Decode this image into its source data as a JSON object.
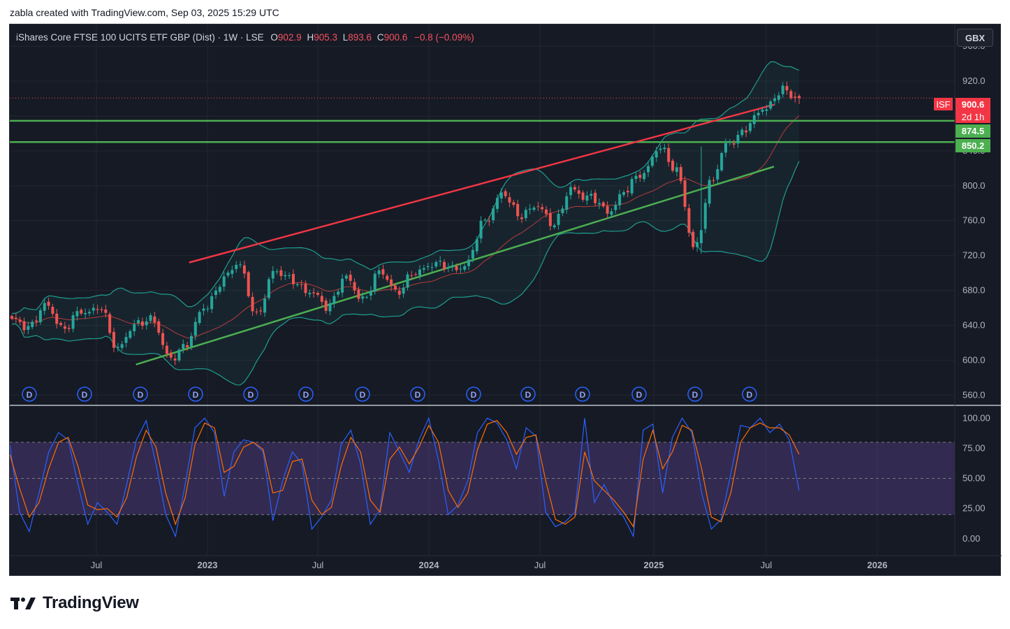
{
  "header": {
    "text": "zabla created with TradingView.com, Sep 03, 2025 15:29 UTC"
  },
  "legend": {
    "instrument": "iShares Core FTSE 100 UCITS ETF GBP (Dist) · 1W · LSE",
    "o_label": "O",
    "o_value": "902.9",
    "h_label": "H",
    "h_value": "905.3",
    "l_label": "L",
    "l_value": "893.6",
    "c_label": "C",
    "c_value": "900.6",
    "change": "−0.8 (−0.09%)"
  },
  "currency": "GBX",
  "price_tags": {
    "symbol": "ISF",
    "last_price": "900.6",
    "countdown": "2d 1h",
    "level_1": "874.5",
    "level_2": "850.2"
  },
  "colors": {
    "background": "#161a25",
    "up": "#26a69a",
    "down": "#ef5350",
    "red_line": "#f23645",
    "green_line": "#4caf50",
    "bb_band": "#1e9e8e",
    "bb_basis": "#b83a3a",
    "stoch_k": "#2962ff",
    "stoch_d": "#ff6d00",
    "stoch_band": "#7e57c2",
    "dividend": "#2962ff"
  },
  "brand": {
    "name": "TradingView",
    "icon": "tradingview-logo-icon"
  },
  "chart_data": [
    {
      "type": "candlestick",
      "title": "iShares Core FTSE 100 UCITS ETF GBP (Dist) · 1W · LSE",
      "timeframe": "1W",
      "y_axis_ticks": [
        "960.0",
        "920.0",
        "880.0",
        "840.0",
        "800.0",
        "760.0",
        "720.0",
        "680.0",
        "640.0",
        "600.0",
        "560.0"
      ],
      "x_axis_ticks": [
        "Jul",
        "2023",
        "Jul",
        "2024",
        "Jul",
        "2025",
        "Jul",
        "2026"
      ],
      "ylim": [
        549,
        985
      ],
      "last_price": 900.6,
      "weekly_close_anchors": [
        {
          "t": "2022-04",
          "close": 645
        },
        {
          "t": "2022-05",
          "close": 640
        },
        {
          "t": "2022-05b",
          "close": 662
        },
        {
          "t": "2022-06",
          "close": 636
        },
        {
          "t": "2022-07",
          "close": 656
        },
        {
          "t": "2022-08",
          "close": 660
        },
        {
          "t": "2022-09",
          "close": 615
        },
        {
          "t": "2022-10",
          "close": 638
        },
        {
          "t": "2022-10b",
          "close": 650
        },
        {
          "t": "2022-11",
          "close": 600
        },
        {
          "t": "2022-11b",
          "close": 620
        },
        {
          "t": "2022-12",
          "close": 660
        },
        {
          "t": "2023-01",
          "close": 690
        },
        {
          "t": "2023-02",
          "close": 712
        },
        {
          "t": "2023-03",
          "close": 648
        },
        {
          "t": "2023-04",
          "close": 705
        },
        {
          "t": "2023-05",
          "close": 690
        },
        {
          "t": "2023-06",
          "close": 680
        },
        {
          "t": "2023-07",
          "close": 660
        },
        {
          "t": "2023-08",
          "close": 695
        },
        {
          "t": "2023-09",
          "close": 670
        },
        {
          "t": "2023-10",
          "close": 700
        },
        {
          "t": "2023-11",
          "close": 680
        },
        {
          "t": "2023-12",
          "close": 698
        },
        {
          "t": "2024-01",
          "close": 712
        },
        {
          "t": "2024-02",
          "close": 705
        },
        {
          "t": "2024-03",
          "close": 710
        },
        {
          "t": "2024-04",
          "close": 760
        },
        {
          "t": "2024-05",
          "close": 790
        },
        {
          "t": "2024-06",
          "close": 768
        },
        {
          "t": "2024-07",
          "close": 775
        },
        {
          "t": "2024-08",
          "close": 758
        },
        {
          "t": "2024-09",
          "close": 795
        },
        {
          "t": "2024-10",
          "close": 788
        },
        {
          "t": "2024-11",
          "close": 770
        },
        {
          "t": "2024-12",
          "close": 792
        },
        {
          "t": "2025-01",
          "close": 815
        },
        {
          "t": "2025-02",
          "close": 842
        },
        {
          "t": "2025-03",
          "close": 820
        },
        {
          "t": "2025-04",
          "close": 725
        },
        {
          "t": "2025-04b",
          "close": 808
        },
        {
          "t": "2025-05",
          "close": 850
        },
        {
          "t": "2025-06",
          "close": 866
        },
        {
          "t": "2025-07",
          "close": 890
        },
        {
          "t": "2025-08",
          "close": 908
        },
        {
          "t": "2025-09",
          "close": 900.6
        }
      ],
      "horizontal_levels": [
        874.5,
        850.2
      ],
      "trend_lines": [
        {
          "name": "upper-channel",
          "from": {
            "t": "2023-02",
            "price": 712
          },
          "to": {
            "t": "2025-11",
            "price": 893
          }
        },
        {
          "name": "lower-channel",
          "from": {
            "t": "2022-11",
            "price": 595
          },
          "to": {
            "t": "2025-11",
            "price": 822
          }
        }
      ],
      "indicators": [
        "Bollinger Bands",
        "Dividends"
      ]
    },
    {
      "type": "line",
      "title": "Stochastic",
      "y_axis_ticks": [
        "100.00",
        "75.00",
        "50.00",
        "25.00",
        "0.00"
      ],
      "ylim": [
        -14,
        110
      ],
      "band": [
        20,
        80
      ],
      "midline": 50,
      "series": [
        {
          "values": [
            78,
            22,
            6,
            38,
            72,
            88,
            82,
            45,
            12,
            30,
            22,
            12,
            45,
            82,
            98,
            62,
            20,
            2,
            45,
            92,
            100,
            88,
            35,
            72,
            82,
            80,
            72,
            15,
            48,
            72,
            62,
            8,
            18,
            32,
            78,
            90,
            62,
            12,
            24,
            88,
            72,
            55,
            82,
            100,
            65,
            20,
            28,
            48,
            88,
            100,
            96,
            82,
            58,
            92,
            85,
            22,
            10,
            14,
            22,
            100,
            30,
            45,
            28,
            18,
            2,
            90,
            95,
            38,
            84,
            100,
            88,
            38,
            8,
            16,
            54,
            94,
            92,
            100,
            88,
            95,
            82,
            40
          ]
        },
        {
          "values": [
            70,
            42,
            18,
            30,
            58,
            80,
            84,
            60,
            28,
            24,
            25,
            18,
            34,
            68,
            90,
            76,
            38,
            12,
            34,
            78,
            96,
            92,
            55,
            60,
            76,
            80,
            74,
            38,
            40,
            64,
            66,
            32,
            20,
            26,
            60,
            84,
            72,
            32,
            22,
            66,
            76,
            62,
            76,
            94,
            80,
            40,
            26,
            38,
            74,
            95,
            98,
            88,
            70,
            84,
            86,
            48,
            16,
            12,
            18,
            72,
            48,
            40,
            32,
            22,
            10,
            66,
            90,
            58,
            72,
            94,
            90,
            58,
            18,
            14,
            38,
            80,
            92,
            96,
            92,
            92,
            86,
            70
          ]
        }
      ]
    }
  ]
}
